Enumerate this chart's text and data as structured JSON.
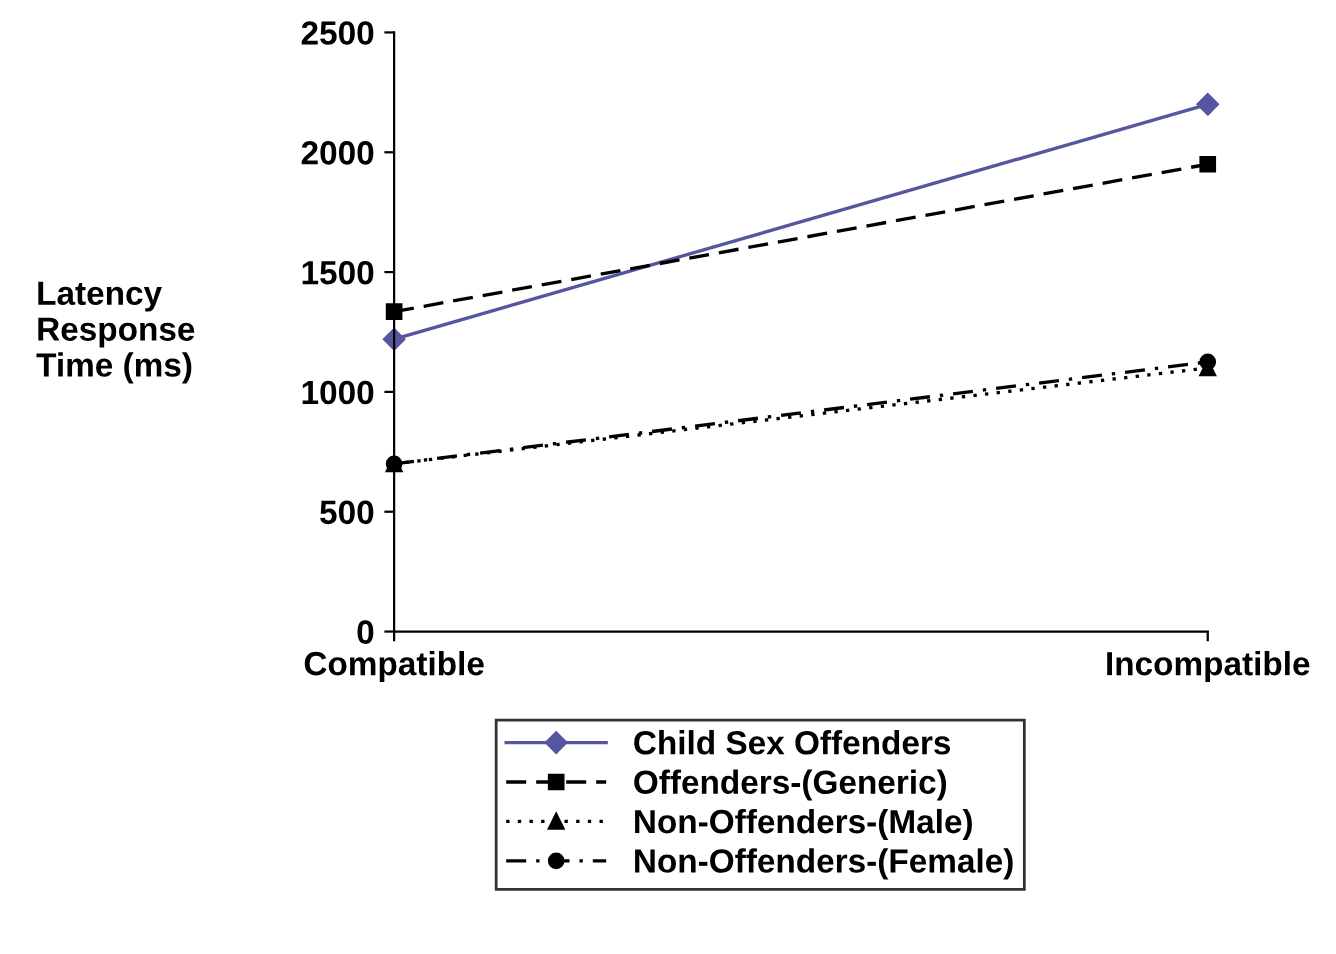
{
  "chart_data": {
    "type": "line",
    "ylabel": "Latency\nResponse\nTime (ms)",
    "categories": [
      "Compatible",
      "Incompatible"
    ],
    "series": [
      {
        "name": "Child Sex Offenders",
        "color": "#5555a0",
        "values": [
          1220,
          2200
        ],
        "marker": "diamond",
        "line_style": "solid"
      },
      {
        "name": "Offenders-(Generic)",
        "color": "#000000",
        "values": [
          1335,
          1950
        ],
        "marker": "square",
        "line_style": "dashed"
      },
      {
        "name": "Non-Offenders-(Male)",
        "color": "#000000",
        "values": [
          700,
          1100
        ],
        "marker": "triangle",
        "line_style": "dotted"
      },
      {
        "name": "Non-Offenders-(Female)",
        "color": "#000000",
        "values": [
          700,
          1125
        ],
        "marker": "circle",
        "line_style": "dashdot"
      }
    ],
    "ylim": [
      0,
      2500
    ],
    "yticks": [
      0,
      500,
      1000,
      1500,
      2000,
      2500
    ],
    "grid": false,
    "legend": "bottom"
  }
}
